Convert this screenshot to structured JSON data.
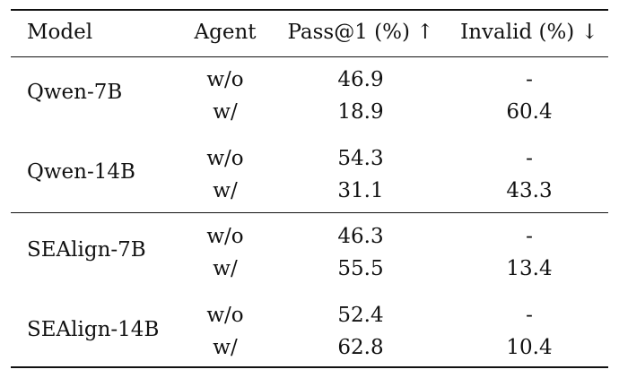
{
  "table": {
    "headers": {
      "model": "Model",
      "agent": "Agent",
      "pass": "Pass@1 (%) ↑",
      "invalid": "Invalid (%) ↓"
    },
    "groups": [
      {
        "model": "Qwen-7B",
        "rows": [
          {
            "agent": "w/o",
            "pass": "46.9",
            "invalid": "-"
          },
          {
            "agent": "w/",
            "pass": "18.9",
            "invalid": "60.4"
          }
        ]
      },
      {
        "model": "Qwen-14B",
        "rows": [
          {
            "agent": "w/o",
            "pass": "54.3",
            "invalid": "-"
          },
          {
            "agent": "w/",
            "pass": "31.1",
            "invalid": "43.3"
          }
        ]
      },
      {
        "model": "SEAlign-7B",
        "rows": [
          {
            "agent": "w/o",
            "pass": "46.3",
            "invalid": "-"
          },
          {
            "agent": "w/",
            "pass": "55.5",
            "invalid": "13.4"
          }
        ]
      },
      {
        "model": "SEAlign-14B",
        "rows": [
          {
            "agent": "w/o",
            "pass": "52.4",
            "invalid": "-"
          },
          {
            "agent": "w/",
            "pass": "62.8",
            "invalid": "10.4"
          }
        ]
      }
    ]
  }
}
